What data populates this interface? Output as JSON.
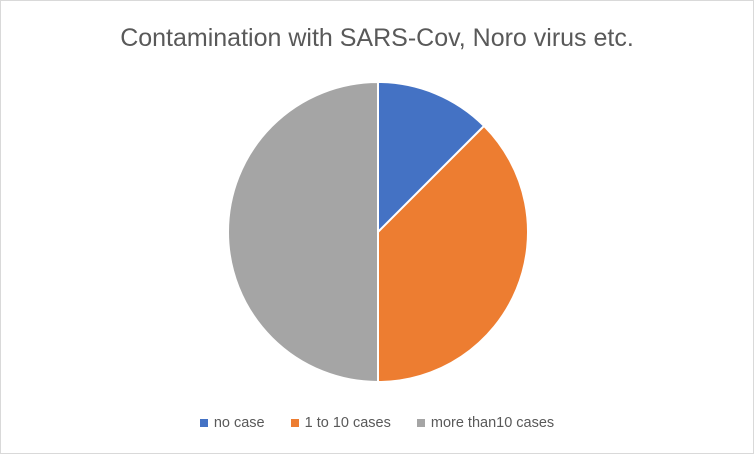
{
  "chart_data": {
    "type": "pie",
    "title": "Contamination with SARS-Cov, Noro virus etc.",
    "categories": [
      "no case",
      "1 to 10 cases",
      "more than10 cases"
    ],
    "values": [
      12.5,
      37.5,
      50
    ],
    "colors": [
      "#4472c4",
      "#ed7d31",
      "#a5a5a5"
    ],
    "start_angle_deg": 0,
    "direction": "clockwise",
    "legend_position": "bottom"
  }
}
